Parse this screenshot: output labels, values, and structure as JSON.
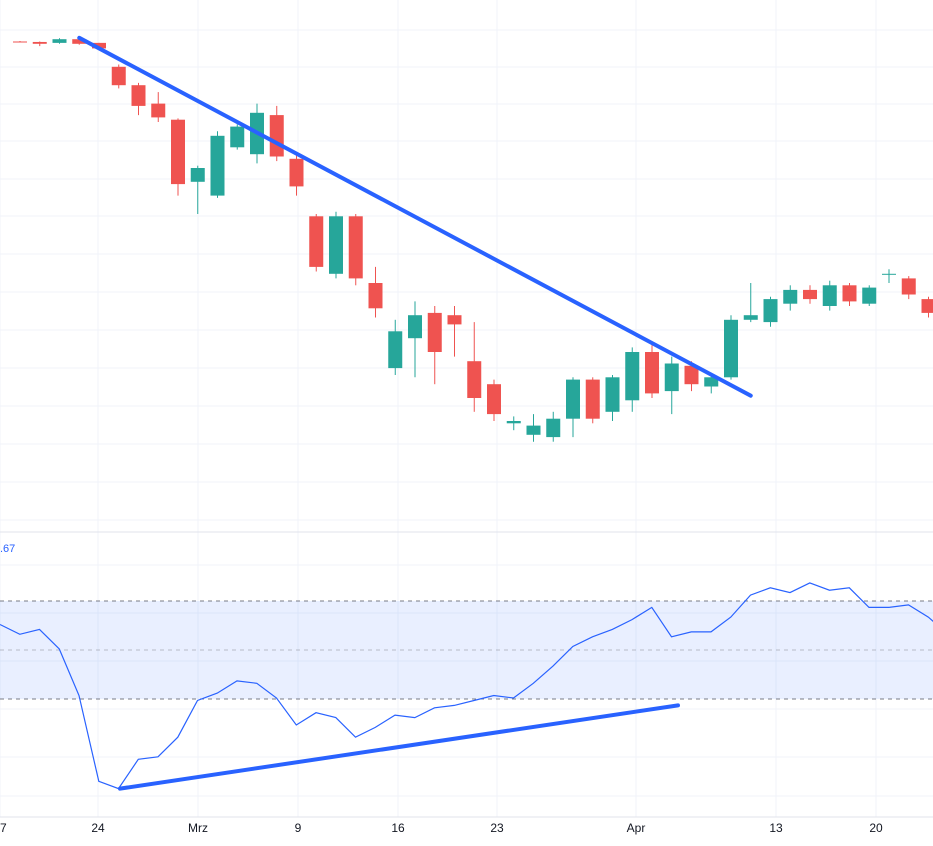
{
  "chart_data": [
    {
      "type": "candlestick",
      "price_axis_visible": false,
      "x_tick_labels": [
        "7",
        "24",
        "Mrz",
        "9",
        "16",
        "23",
        "Apr",
        "13",
        "20"
      ],
      "colors": {
        "up": "#26a69a",
        "down": "#ef5350",
        "grid": "#f0f3fa",
        "trendline": "#2962ff"
      },
      "candles": [
        {
          "i": 0,
          "o": 97.5,
          "h": 97.6,
          "l": 97.3,
          "c": 97.4
        },
        {
          "i": 1,
          "o": 97.4,
          "h": 97.5,
          "l": 96.5,
          "c": 97.0
        },
        {
          "i": 2,
          "o": 97.2,
          "h": 98.2,
          "l": 97.0,
          "c": 98.0
        },
        {
          "i": 3,
          "o": 98.0,
          "h": 98.6,
          "l": 96.8,
          "c": 97.0
        },
        {
          "i": 4,
          "o": 97.2,
          "h": 97.2,
          "l": 95.8,
          "c": 96.0
        },
        {
          "i": 5,
          "o": 92.0,
          "h": 92.5,
          "l": 87.3,
          "c": 88.0
        },
        {
          "i": 6,
          "o": 88.0,
          "h": 88.5,
          "l": 81.5,
          "c": 83.5
        },
        {
          "i": 7,
          "o": 84.0,
          "h": 86.5,
          "l": 80.0,
          "c": 81.0
        },
        {
          "i": 8,
          "o": 80.5,
          "h": 80.8,
          "l": 64.0,
          "c": 66.5
        },
        {
          "i": 9,
          "o": 67.0,
          "h": 70.5,
          "l": 60.0,
          "c": 70.0
        },
        {
          "i": 10,
          "o": 64.0,
          "h": 78.0,
          "l": 63.5,
          "c": 77.0
        },
        {
          "i": 11,
          "o": 74.5,
          "h": 79.5,
          "l": 74.0,
          "c": 79.0
        },
        {
          "i": 12,
          "o": 73.0,
          "h": 84.0,
          "l": 71.0,
          "c": 82.0
        },
        {
          "i": 13,
          "o": 81.5,
          "h": 83.5,
          "l": 71.5,
          "c": 72.5
        },
        {
          "i": 14,
          "o": 72.0,
          "h": 73.0,
          "l": 64.0,
          "c": 66.0
        },
        {
          "i": 15,
          "o": 59.5,
          "h": 60.0,
          "l": 47.5,
          "c": 48.5
        },
        {
          "i": 16,
          "o": 47.0,
          "h": 60.5,
          "l": 46.0,
          "c": 59.5
        },
        {
          "i": 17,
          "o": 59.5,
          "h": 60.0,
          "l": 44.5,
          "c": 46.0
        },
        {
          "i": 18,
          "o": 45.0,
          "h": 48.5,
          "l": 37.5,
          "c": 39.5
        },
        {
          "i": 19,
          "o": 26.5,
          "h": 37.0,
          "l": 25.0,
          "c": 34.5
        },
        {
          "i": 20,
          "o": 33.0,
          "h": 41.0,
          "l": 24.5,
          "c": 38.0
        },
        {
          "i": 21,
          "o": 38.5,
          "h": 40.0,
          "l": 23.0,
          "c": 30.0
        },
        {
          "i": 22,
          "o": 38.0,
          "h": 40.0,
          "l": 29.0,
          "c": 36.0
        },
        {
          "i": 23,
          "o": 28.0,
          "h": 36.5,
          "l": 17.0,
          "c": 20.0
        },
        {
          "i": 24,
          "o": 23.0,
          "h": 24.0,
          "l": 15.0,
          "c": 16.5
        },
        {
          "i": 25,
          "o": 14.5,
          "h": 16.0,
          "l": 13.0,
          "c": 15.0
        },
        {
          "i": 26,
          "o": 12.0,
          "h": 16.5,
          "l": 10.5,
          "c": 14.0
        },
        {
          "i": 27,
          "o": 11.5,
          "h": 17.0,
          "l": 10.5,
          "c": 15.5
        },
        {
          "i": 28,
          "o": 15.5,
          "h": 24.5,
          "l": 11.5,
          "c": 24.0
        },
        {
          "i": 29,
          "o": 24.0,
          "h": 24.5,
          "l": 14.5,
          "c": 15.5
        },
        {
          "i": 30,
          "o": 17.0,
          "h": 25.0,
          "l": 15.0,
          "c": 24.5
        },
        {
          "i": 31,
          "o": 19.5,
          "h": 31.0,
          "l": 17.0,
          "c": 30.0
        },
        {
          "i": 32,
          "o": 30.0,
          "h": 31.5,
          "l": 20.0,
          "c": 21.0
        },
        {
          "i": 33,
          "o": 21.5,
          "h": 29.0,
          "l": 16.5,
          "c": 27.5
        },
        {
          "i": 34,
          "o": 27.0,
          "h": 28.0,
          "l": 21.5,
          "c": 23.0
        },
        {
          "i": 35,
          "o": 22.5,
          "h": 25.5,
          "l": 21.0,
          "c": 24.5
        },
        {
          "i": 36,
          "o": 24.5,
          "h": 38.0,
          "l": 24.0,
          "c": 37.0
        },
        {
          "i": 37,
          "o": 37.0,
          "h": 45.0,
          "l": 36.5,
          "c": 38.0
        },
        {
          "i": 38,
          "o": 36.5,
          "h": 42.0,
          "l": 35.5,
          "c": 41.5
        },
        {
          "i": 39,
          "o": 40.5,
          "h": 44.5,
          "l": 39.0,
          "c": 43.5
        },
        {
          "i": 40,
          "o": 43.5,
          "h": 44.5,
          "l": 40.5,
          "c": 41.5
        },
        {
          "i": 41,
          "o": 40.0,
          "h": 45.5,
          "l": 39.0,
          "c": 44.5
        },
        {
          "i": 42,
          "o": 44.5,
          "h": 45.0,
          "l": 40.0,
          "c": 41.0
        },
        {
          "i": 43,
          "o": 40.5,
          "h": 44.5,
          "l": 40.0,
          "c": 44.0
        },
        {
          "i": 44,
          "o": 47.0,
          "h": 48.0,
          "l": 45.0,
          "c": 47.0
        },
        {
          "i": 45,
          "o": 46.0,
          "h": 46.5,
          "l": 41.5,
          "c": 42.5
        },
        {
          "i": 46,
          "o": 41.5,
          "h": 42.0,
          "l": 37.5,
          "c": 38.5
        },
        {
          "i": 47,
          "o": 38.5,
          "h": 41.5,
          "l": 38.0,
          "c": 41.0
        },
        {
          "i": 48,
          "o": 41.0,
          "h": 41.5,
          "l": 39.5,
          "c": 40.0
        }
      ],
      "trendline": {
        "from": {
          "i": 3,
          "v": 98.3
        },
        "to": {
          "i": 37,
          "v": 20.5
        }
      }
    },
    {
      "type": "line",
      "series_color": "#2962ff",
      "partial_value_label": ".67",
      "band": {
        "upper": 70,
        "lower": 30,
        "middle": 50
      },
      "values": [
        70,
        66,
        68,
        60,
        41,
        6,
        3,
        15,
        16,
        24,
        39,
        42,
        47,
        46,
        40,
        29,
        34,
        32,
        24,
        28,
        33,
        32,
        36,
        37,
        39,
        41,
        40,
        46,
        53,
        61,
        65,
        68,
        72,
        77,
        65,
        67,
        67,
        73,
        82,
        85,
        83,
        87,
        84,
        85,
        77,
        77,
        78,
        73,
        66,
        65,
        69
      ],
      "trendline": {
        "from": {
          "x": 120,
          "y": 3
        },
        "to": {
          "x": 678,
          "y": 37
        }
      }
    }
  ]
}
